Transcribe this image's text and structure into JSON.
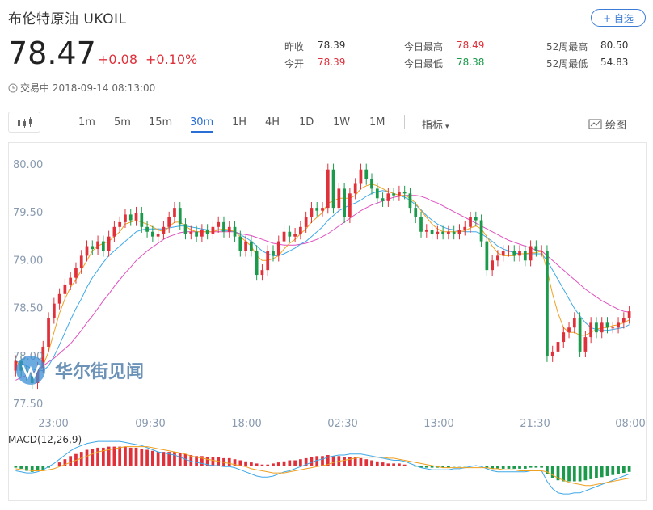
{
  "header": {
    "title": "布伦特原油  UKOIL",
    "fav_label": "+ 自选",
    "price": "78.47",
    "change": "+0.08",
    "change_pct": "+0.10%",
    "status": "交易中 2018-09-14 08:13:00"
  },
  "stats": [
    {
      "label": "昨收",
      "value": "78.39",
      "color": "#333333"
    },
    {
      "label": "今开",
      "value": "78.39",
      "color": "#e0303a"
    },
    {
      "label": "今日最高",
      "value": "78.49",
      "color": "#e0303a"
    },
    {
      "label": "今日最低",
      "value": "78.38",
      "color": "#1a9a4a"
    },
    {
      "label": "52周最高",
      "value": "80.50",
      "color": "#333333"
    },
    {
      "label": "52周最低",
      "value": "54.83",
      "color": "#333333"
    }
  ],
  "toolbar": {
    "periods": [
      "1m",
      "5m",
      "15m",
      "30m",
      "1H",
      "4H",
      "1D",
      "1W",
      "1M"
    ],
    "active": "30m",
    "indicator_label": "指标",
    "draw_label": "绘图"
  },
  "watermark": "华尔街见闻",
  "chart_data": {
    "type": "candlestick",
    "y_ticks": [
      "80.00",
      "79.50",
      "79.00",
      "78.50",
      "78.00",
      "77.50"
    ],
    "ylim": [
      77.45,
      80.15
    ],
    "x_ticks": [
      "23:00",
      "09:30",
      "18:00",
      "02:30",
      "13:00",
      "21:30",
      "08:00"
    ],
    "macd_label": "MACD(12,26,9)",
    "up_color": "#e0303a",
    "down_color": "#1a9a4a",
    "ma_colors": [
      "#f0a020",
      "#3ea8e8",
      "#e050c0"
    ],
    "close": [
      77.95,
      77.85,
      77.8,
      77.72,
      77.88,
      78.1,
      78.4,
      78.55,
      78.65,
      78.75,
      78.82,
      78.92,
      79.05,
      79.15,
      79.12,
      79.2,
      79.1,
      79.25,
      79.35,
      79.4,
      79.48,
      79.42,
      79.5,
      79.35,
      79.3,
      79.25,
      79.28,
      79.35,
      79.45,
      79.55,
      79.38,
      79.28,
      79.3,
      79.25,
      79.32,
      79.28,
      79.35,
      79.4,
      79.3,
      79.35,
      79.25,
      79.1,
      79.2,
      79.1,
      78.85,
      78.9,
      79.1,
      79.05,
      79.2,
      79.3,
      79.25,
      79.28,
      79.35,
      79.45,
      79.55,
      79.52,
      79.55,
      79.95,
      79.55,
      79.75,
      79.45,
      79.7,
      79.8,
      79.95,
      79.85,
      79.75,
      79.65,
      79.62,
      79.7,
      79.68,
      79.72,
      79.7,
      79.55,
      79.45,
      79.3,
      79.32,
      79.28,
      79.3,
      79.28,
      79.3,
      79.28,
      79.32,
      79.35,
      79.45,
      79.42,
      79.2,
      78.9,
      79.0,
      79.05,
      79.1,
      79.1,
      79.05,
      79.1,
      79.0,
      79.15,
      79.1,
      79.1,
      78.0,
      78.05,
      78.15,
      78.25,
      78.3,
      78.4,
      78.05,
      78.2,
      78.35,
      78.25,
      78.35,
      78.3,
      78.3,
      78.35,
      78.4,
      78.47
    ],
    "open": [
      77.85,
      77.95,
      77.85,
      77.8,
      77.72,
      77.88,
      78.1,
      78.4,
      78.55,
      78.65,
      78.75,
      78.82,
      78.92,
      79.05,
      79.15,
      79.12,
      79.2,
      79.1,
      79.25,
      79.35,
      79.4,
      79.48,
      79.42,
      79.5,
      79.35,
      79.3,
      79.25,
      79.28,
      79.35,
      79.45,
      79.55,
      79.38,
      79.28,
      79.3,
      79.25,
      79.32,
      79.28,
      79.35,
      79.4,
      79.3,
      79.35,
      79.25,
      79.1,
      79.2,
      79.1,
      78.85,
      78.9,
      79.1,
      79.05,
      79.2,
      79.3,
      79.25,
      79.28,
      79.35,
      79.45,
      79.55,
      79.52,
      79.55,
      79.95,
      79.55,
      79.75,
      79.45,
      79.7,
      79.8,
      79.95,
      79.85,
      79.75,
      79.65,
      79.62,
      79.7,
      79.68,
      79.72,
      79.7,
      79.55,
      79.45,
      79.3,
      79.32,
      79.28,
      79.3,
      79.28,
      79.3,
      79.28,
      79.32,
      79.35,
      79.45,
      79.42,
      79.2,
      78.9,
      79.0,
      79.05,
      79.1,
      79.1,
      79.05,
      79.1,
      79.0,
      79.15,
      79.1,
      79.1,
      78.0,
      78.05,
      78.15,
      78.25,
      78.3,
      78.4,
      78.05,
      78.2,
      78.35,
      78.25,
      78.35,
      78.3,
      78.3,
      78.35,
      78.4
    ],
    "ma5": [
      77.95,
      77.9,
      77.85,
      77.8,
      77.82,
      77.9,
      78.05,
      78.25,
      78.45,
      78.6,
      78.72,
      78.8,
      78.9,
      79.0,
      79.1,
      79.15,
      79.18,
      79.2,
      79.25,
      79.3,
      79.38,
      79.4,
      79.42,
      79.4,
      79.38,
      79.35,
      79.32,
      79.3,
      79.35,
      79.4,
      79.4,
      79.36,
      79.32,
      79.3,
      79.3,
      79.3,
      79.3,
      79.32,
      79.33,
      79.32,
      79.3,
      79.25,
      79.2,
      79.15,
      79.05,
      79.0,
      79.0,
      79.02,
      79.05,
      79.12,
      79.18,
      79.22,
      79.28,
      79.33,
      79.4,
      79.45,
      79.5,
      79.6,
      79.62,
      79.65,
      79.65,
      79.65,
      79.68,
      79.75,
      79.78,
      79.8,
      79.78,
      79.75,
      79.72,
      79.7,
      79.68,
      79.68,
      79.65,
      79.6,
      79.52,
      79.45,
      79.38,
      79.33,
      79.3,
      79.3,
      79.3,
      79.3,
      79.31,
      79.34,
      79.36,
      79.33,
      79.25,
      79.15,
      79.08,
      79.05,
      79.05,
      79.05,
      79.07,
      79.07,
      79.08,
      79.08,
      79.1,
      78.9,
      78.65,
      78.45,
      78.3,
      78.25,
      78.25,
      78.22,
      78.22,
      78.25,
      78.28,
      78.3,
      78.3,
      78.32,
      78.33,
      78.35,
      78.38
    ],
    "ma10": [
      77.95,
      77.93,
      77.9,
      77.87,
      77.85,
      77.85,
      77.9,
      78.0,
      78.12,
      78.25,
      78.38,
      78.5,
      78.6,
      78.72,
      78.82,
      78.9,
      78.98,
      79.05,
      79.1,
      79.15,
      79.2,
      79.25,
      79.3,
      79.32,
      79.33,
      79.33,
      79.33,
      79.33,
      79.34,
      79.35,
      79.36,
      79.36,
      79.35,
      79.34,
      79.33,
      79.32,
      79.32,
      79.32,
      79.31,
      79.31,
      79.3,
      79.27,
      79.24,
      79.2,
      79.15,
      79.1,
      79.07,
      79.05,
      79.05,
      79.07,
      79.1,
      79.13,
      79.17,
      79.2,
      79.25,
      79.3,
      79.35,
      79.42,
      79.47,
      79.52,
      79.55,
      79.58,
      79.6,
      79.63,
      79.67,
      79.7,
      79.72,
      79.73,
      79.72,
      79.7,
      79.68,
      79.66,
      79.63,
      79.58,
      79.53,
      79.47,
      79.42,
      79.38,
      79.35,
      79.33,
      79.32,
      79.31,
      79.3,
      79.3,
      79.3,
      79.28,
      79.24,
      79.2,
      79.15,
      79.12,
      79.1,
      79.08,
      79.07,
      79.07,
      79.07,
      79.07,
      79.07,
      79.0,
      78.9,
      78.8,
      78.7,
      78.6,
      78.5,
      78.42,
      78.35,
      78.3,
      78.28,
      78.27,
      78.27,
      78.28,
      78.29,
      78.3,
      78.33
    ],
    "ma20": [
      77.75,
      77.78,
      77.8,
      77.83,
      77.86,
      77.9,
      77.94,
      77.98,
      78.03,
      78.08,
      78.13,
      78.2,
      78.27,
      78.35,
      78.42,
      78.5,
      78.58,
      78.65,
      78.73,
      78.8,
      78.87,
      78.93,
      79.0,
      79.05,
      79.1,
      79.14,
      79.18,
      79.22,
      79.25,
      79.27,
      79.29,
      79.3,
      79.3,
      79.3,
      79.3,
      79.3,
      79.3,
      79.3,
      79.3,
      79.3,
      79.3,
      79.28,
      79.27,
      79.26,
      79.24,
      79.22,
      79.2,
      79.18,
      79.17,
      79.16,
      79.16,
      79.16,
      79.17,
      79.18,
      79.2,
      79.22,
      79.25,
      79.28,
      79.32,
      79.36,
      79.4,
      79.44,
      79.48,
      79.52,
      79.55,
      79.58,
      79.6,
      79.62,
      79.64,
      79.66,
      79.67,
      79.68,
      79.68,
      79.68,
      79.67,
      79.65,
      79.62,
      79.6,
      79.57,
      79.54,
      79.51,
      79.48,
      79.45,
      79.42,
      79.39,
      79.36,
      79.33,
      79.3,
      79.27,
      79.24,
      79.21,
      79.19,
      79.17,
      79.15,
      79.13,
      79.11,
      79.1,
      79.05,
      79.0,
      78.95,
      78.9,
      78.85,
      78.8,
      78.75,
      78.7,
      78.66,
      78.62,
      78.58,
      78.55,
      78.52,
      78.49,
      78.47,
      78.46
    ],
    "macd_hist": [
      -0.02,
      -0.03,
      -0.05,
      -0.06,
      -0.05,
      -0.04,
      -0.02,
      0.0,
      0.03,
      0.06,
      0.09,
      0.11,
      0.13,
      0.15,
      0.16,
      0.17,
      0.17,
      0.18,
      0.18,
      0.18,
      0.18,
      0.17,
      0.17,
      0.16,
      0.15,
      0.14,
      0.13,
      0.13,
      0.13,
      0.13,
      0.12,
      0.11,
      0.1,
      0.09,
      0.09,
      0.08,
      0.08,
      0.08,
      0.07,
      0.07,
      0.06,
      0.05,
      0.04,
      0.03,
      0.02,
      0.01,
      0.01,
      0.02,
      0.03,
      0.04,
      0.05,
      0.05,
      0.06,
      0.07,
      0.08,
      0.09,
      0.09,
      0.1,
      0.09,
      0.09,
      0.08,
      0.08,
      0.08,
      0.07,
      0.06,
      0.05,
      0.04,
      0.03,
      0.02,
      0.02,
      0.02,
      0.01,
      0.0,
      -0.01,
      -0.02,
      -0.02,
      -0.02,
      -0.02,
      -0.02,
      -0.02,
      -0.01,
      -0.01,
      -0.01,
      0.0,
      0.0,
      -0.01,
      -0.02,
      -0.03,
      -0.03,
      -0.03,
      -0.03,
      -0.03,
      -0.03,
      -0.03,
      -0.02,
      -0.02,
      -0.02,
      -0.08,
      -0.12,
      -0.14,
      -0.15,
      -0.15,
      -0.15,
      -0.15,
      -0.14,
      -0.13,
      -0.12,
      -0.11,
      -0.1,
      -0.09,
      -0.08,
      -0.07,
      -0.06
    ],
    "macd_dif": [
      -0.05,
      -0.06,
      -0.07,
      -0.07,
      -0.06,
      -0.04,
      -0.01,
      0.02,
      0.06,
      0.1,
      0.14,
      0.17,
      0.19,
      0.21,
      0.22,
      0.23,
      0.23,
      0.23,
      0.23,
      0.23,
      0.22,
      0.21,
      0.2,
      0.19,
      0.17,
      0.15,
      0.13,
      0.12,
      0.11,
      0.1,
      0.08,
      0.06,
      0.04,
      0.03,
      0.02,
      0.01,
      0.0,
      0.0,
      -0.01,
      -0.01,
      -0.02,
      -0.04,
      -0.06,
      -0.08,
      -0.1,
      -0.11,
      -0.11,
      -0.1,
      -0.08,
      -0.06,
      -0.05,
      -0.03,
      -0.01,
      0.01,
      0.03,
      0.05,
      0.06,
      0.08,
      0.09,
      0.1,
      0.1,
      0.11,
      0.11,
      0.11,
      0.1,
      0.09,
      0.08,
      0.07,
      0.06,
      0.05,
      0.05,
      0.04,
      0.02,
      0.0,
      -0.02,
      -0.03,
      -0.04,
      -0.04,
      -0.04,
      -0.04,
      -0.03,
      -0.03,
      -0.02,
      -0.01,
      0.0,
      -0.01,
      -0.03,
      -0.05,
      -0.06,
      -0.06,
      -0.06,
      -0.06,
      -0.06,
      -0.06,
      -0.05,
      -0.05,
      -0.05,
      -0.15,
      -0.22,
      -0.26,
      -0.27,
      -0.27,
      -0.26,
      -0.26,
      -0.24,
      -0.22,
      -0.2,
      -0.18,
      -0.16,
      -0.14,
      -0.12,
      -0.1,
      -0.08
    ],
    "macd_dea": [
      -0.03,
      -0.04,
      -0.04,
      -0.05,
      -0.05,
      -0.05,
      -0.04,
      -0.03,
      -0.01,
      0.01,
      0.03,
      0.05,
      0.07,
      0.09,
      0.11,
      0.13,
      0.14,
      0.15,
      0.16,
      0.17,
      0.18,
      0.18,
      0.18,
      0.18,
      0.18,
      0.17,
      0.16,
      0.15,
      0.14,
      0.13,
      0.12,
      0.11,
      0.09,
      0.08,
      0.07,
      0.06,
      0.05,
      0.04,
      0.03,
      0.02,
      0.01,
      0.0,
      -0.01,
      -0.03,
      -0.04,
      -0.05,
      -0.06,
      -0.07,
      -0.07,
      -0.07,
      -0.06,
      -0.05,
      -0.04,
      -0.03,
      -0.02,
      -0.01,
      0.0,
      0.01,
      0.03,
      0.04,
      0.05,
      0.06,
      0.07,
      0.08,
      0.08,
      0.08,
      0.08,
      0.08,
      0.07,
      0.07,
      0.06,
      0.05,
      0.04,
      0.03,
      0.02,
      0.01,
      0.0,
      -0.01,
      -0.02,
      -0.02,
      -0.02,
      -0.02,
      -0.02,
      -0.02,
      -0.02,
      -0.02,
      -0.02,
      -0.03,
      -0.03,
      -0.04,
      -0.04,
      -0.04,
      -0.05,
      -0.05,
      -0.05,
      -0.05,
      -0.05,
      -0.06,
      -0.09,
      -0.12,
      -0.14,
      -0.16,
      -0.17,
      -0.18,
      -0.19,
      -0.19,
      -0.18,
      -0.17,
      -0.16,
      -0.15,
      -0.14,
      -0.13,
      -0.12
    ]
  }
}
